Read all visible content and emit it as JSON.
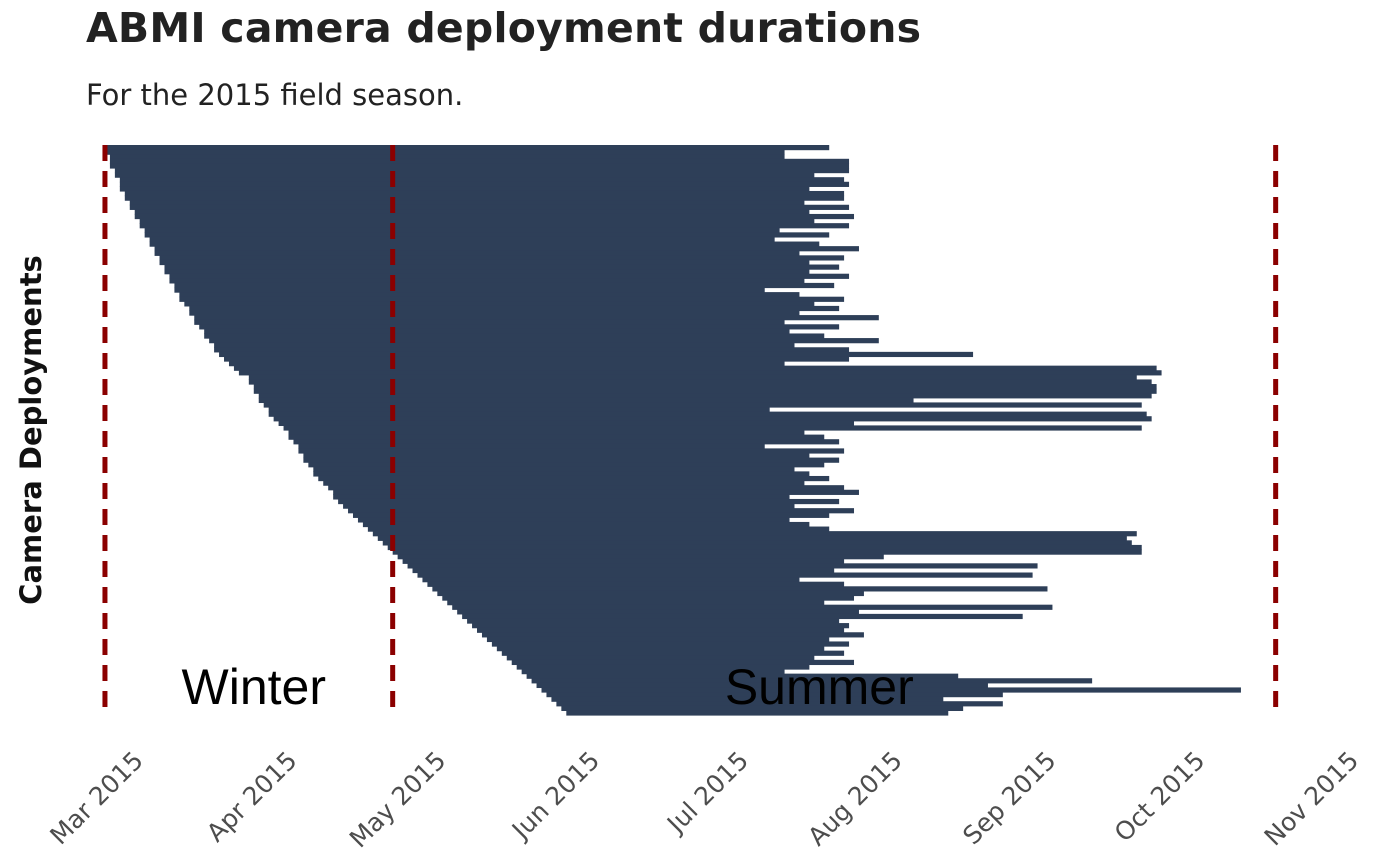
{
  "chart_data": {
    "type": "bar",
    "orientation": "horizontal",
    "title": "ABMI camera deployment durations",
    "subtitle": "For the 2015 field season.",
    "xlabel": "",
    "ylabel": "Camera Deployments",
    "x_ticks": [
      "Mar 2015",
      "Apr 2015",
      "May 2015",
      "Jun 2015",
      "Jul 2015",
      "Aug 2015",
      "Sep 2015",
      "Oct 2015",
      "Nov 2015"
    ],
    "xlim": [
      "2015-02-20",
      "2015-11-01"
    ],
    "grid": false,
    "legend": "none",
    "bar_color": "#2e3f58",
    "reference_lines": [
      {
        "date": "2015-02-21",
        "style": "dashed",
        "color": "#8b0000"
      },
      {
        "date": "2015-04-20",
        "style": "dashed",
        "color": "#8b0000"
      },
      {
        "date": "2015-10-15",
        "style": "dashed",
        "color": "#8b0000"
      }
    ],
    "annotations": [
      {
        "text": "Winter",
        "date": "2015-03-23"
      },
      {
        "text": "Summer",
        "date": "2015-07-15"
      }
    ],
    "series": [
      {
        "values": [
          [
            "2015-02-21",
            "2015-07-17"
          ],
          [
            "2015-02-21",
            "2015-07-08"
          ],
          [
            "2015-02-22",
            "2015-07-08"
          ],
          [
            "2015-02-22",
            "2015-07-21"
          ],
          [
            "2015-02-22",
            "2015-07-21"
          ],
          [
            "2015-02-23",
            "2015-07-21"
          ],
          [
            "2015-02-23",
            "2015-07-14"
          ],
          [
            "2015-02-24",
            "2015-07-20"
          ],
          [
            "2015-02-24",
            "2015-07-21"
          ],
          [
            "2015-02-24",
            "2015-07-13"
          ],
          [
            "2015-02-25",
            "2015-07-20"
          ],
          [
            "2015-02-25",
            "2015-07-20"
          ],
          [
            "2015-02-26",
            "2015-07-12"
          ],
          [
            "2015-02-26",
            "2015-07-21"
          ],
          [
            "2015-02-27",
            "2015-07-13"
          ],
          [
            "2015-02-27",
            "2015-07-22"
          ],
          [
            "2015-02-28",
            "2015-07-14"
          ],
          [
            "2015-02-28",
            "2015-07-21"
          ],
          [
            "2015-03-01",
            "2015-07-07"
          ],
          [
            "2015-03-01",
            "2015-07-17"
          ],
          [
            "2015-03-02",
            "2015-07-06"
          ],
          [
            "2015-03-02",
            "2015-07-15"
          ],
          [
            "2015-03-03",
            "2015-07-23"
          ],
          [
            "2015-03-03",
            "2015-07-11"
          ],
          [
            "2015-03-04",
            "2015-07-20"
          ],
          [
            "2015-03-04",
            "2015-07-13"
          ],
          [
            "2015-03-05",
            "2015-07-19"
          ],
          [
            "2015-03-05",
            "2015-07-13"
          ],
          [
            "2015-03-06",
            "2015-07-21"
          ],
          [
            "2015-03-06",
            "2015-07-12"
          ],
          [
            "2015-03-07",
            "2015-07-18"
          ],
          [
            "2015-03-07",
            "2015-07-04"
          ],
          [
            "2015-03-08",
            "2015-07-11"
          ],
          [
            "2015-03-08",
            "2015-07-20"
          ],
          [
            "2015-03-09",
            "2015-07-14"
          ],
          [
            "2015-03-10",
            "2015-07-19"
          ],
          [
            "2015-03-10",
            "2015-07-11"
          ],
          [
            "2015-03-11",
            "2015-07-27"
          ],
          [
            "2015-03-11",
            "2015-07-08"
          ],
          [
            "2015-03-12",
            "2015-07-19"
          ],
          [
            "2015-03-13",
            "2015-07-09"
          ],
          [
            "2015-03-13",
            "2015-07-16"
          ],
          [
            "2015-03-14",
            "2015-07-27"
          ],
          [
            "2015-03-15",
            "2015-07-10"
          ],
          [
            "2015-03-15",
            "2015-07-21"
          ],
          [
            "2015-03-16",
            "2015-08-15"
          ],
          [
            "2015-03-17",
            "2015-07-21"
          ],
          [
            "2015-03-18",
            "2015-07-08"
          ],
          [
            "2015-03-19",
            "2015-09-21"
          ],
          [
            "2015-03-20",
            "2015-09-22"
          ],
          [
            "2015-03-22",
            "2015-09-17"
          ],
          [
            "2015-03-22",
            "2015-09-20"
          ],
          [
            "2015-03-23",
            "2015-09-21"
          ],
          [
            "2015-03-23",
            "2015-09-21"
          ],
          [
            "2015-03-24",
            "2015-09-20"
          ],
          [
            "2015-03-24",
            "2015-08-03"
          ],
          [
            "2015-03-25",
            "2015-09-18"
          ],
          [
            "2015-03-26",
            "2015-07-05"
          ],
          [
            "2015-03-26",
            "2015-09-19"
          ],
          [
            "2015-03-27",
            "2015-09-20"
          ],
          [
            "2015-03-28",
            "2015-07-22"
          ],
          [
            "2015-03-29",
            "2015-09-18"
          ],
          [
            "2015-03-30",
            "2015-07-12"
          ],
          [
            "2015-03-30",
            "2015-07-16"
          ],
          [
            "2015-03-31",
            "2015-07-19"
          ],
          [
            "2015-04-01",
            "2015-07-04"
          ],
          [
            "2015-04-01",
            "2015-07-20"
          ],
          [
            "2015-04-02",
            "2015-07-13"
          ],
          [
            "2015-04-02",
            "2015-07-19"
          ],
          [
            "2015-04-03",
            "2015-07-16"
          ],
          [
            "2015-04-04",
            "2015-07-10"
          ],
          [
            "2015-04-04",
            "2015-07-13"
          ],
          [
            "2015-04-05",
            "2015-07-17"
          ],
          [
            "2015-04-06",
            "2015-07-12"
          ],
          [
            "2015-04-07",
            "2015-07-20"
          ],
          [
            "2015-04-08",
            "2015-07-23"
          ],
          [
            "2015-04-08",
            "2015-07-09"
          ],
          [
            "2015-04-09",
            "2015-07-19"
          ],
          [
            "2015-04-10",
            "2015-07-10"
          ],
          [
            "2015-04-11",
            "2015-07-22"
          ],
          [
            "2015-04-12",
            "2015-07-17"
          ],
          [
            "2015-04-13",
            "2015-07-09"
          ],
          [
            "2015-04-14",
            "2015-07-13"
          ],
          [
            "2015-04-15",
            "2015-07-17"
          ],
          [
            "2015-04-16",
            "2015-09-17"
          ],
          [
            "2015-04-17",
            "2015-09-15"
          ],
          [
            "2015-04-18",
            "2015-09-16"
          ],
          [
            "2015-04-19",
            "2015-09-18"
          ],
          [
            "2015-04-20",
            "2015-09-18"
          ],
          [
            "2015-04-21",
            "2015-07-28"
          ],
          [
            "2015-04-22",
            "2015-07-20"
          ],
          [
            "2015-04-23",
            "2015-08-28"
          ],
          [
            "2015-04-24",
            "2015-07-18"
          ],
          [
            "2015-04-25",
            "2015-08-27"
          ],
          [
            "2015-04-26",
            "2015-07-11"
          ],
          [
            "2015-04-27",
            "2015-07-20"
          ],
          [
            "2015-04-28",
            "2015-08-30"
          ],
          [
            "2015-04-29",
            "2015-07-24"
          ],
          [
            "2015-04-30",
            "2015-07-22"
          ],
          [
            "2015-05-01",
            "2015-07-16"
          ],
          [
            "2015-05-02",
            "2015-08-31"
          ],
          [
            "2015-05-03",
            "2015-07-23"
          ],
          [
            "2015-05-04",
            "2015-08-25"
          ],
          [
            "2015-05-05",
            "2015-07-19"
          ],
          [
            "2015-05-06",
            "2015-07-21"
          ],
          [
            "2015-05-07",
            "2015-07-20"
          ],
          [
            "2015-05-08",
            "2015-07-24"
          ],
          [
            "2015-05-09",
            "2015-07-17"
          ],
          [
            "2015-05-10",
            "2015-07-21"
          ],
          [
            "2015-05-11",
            "2015-07-16"
          ],
          [
            "2015-05-12",
            "2015-07-20"
          ],
          [
            "2015-05-13",
            "2015-07-14"
          ],
          [
            "2015-05-14",
            "2015-07-22"
          ],
          [
            "2015-05-15",
            "2015-07-13"
          ],
          [
            "2015-05-16",
            "2015-07-08"
          ],
          [
            "2015-05-17",
            "2015-08-12"
          ],
          [
            "2015-05-18",
            "2015-09-08"
          ],
          [
            "2015-05-19",
            "2015-08-18"
          ],
          [
            "2015-05-20",
            "2015-10-08"
          ],
          [
            "2015-05-21",
            "2015-08-21"
          ],
          [
            "2015-05-22",
            "2015-08-09"
          ],
          [
            "2015-05-23",
            "2015-08-21"
          ],
          [
            "2015-05-24",
            "2015-08-13"
          ],
          [
            "2015-05-25",
            "2015-08-10"
          ]
        ]
      }
    ]
  }
}
